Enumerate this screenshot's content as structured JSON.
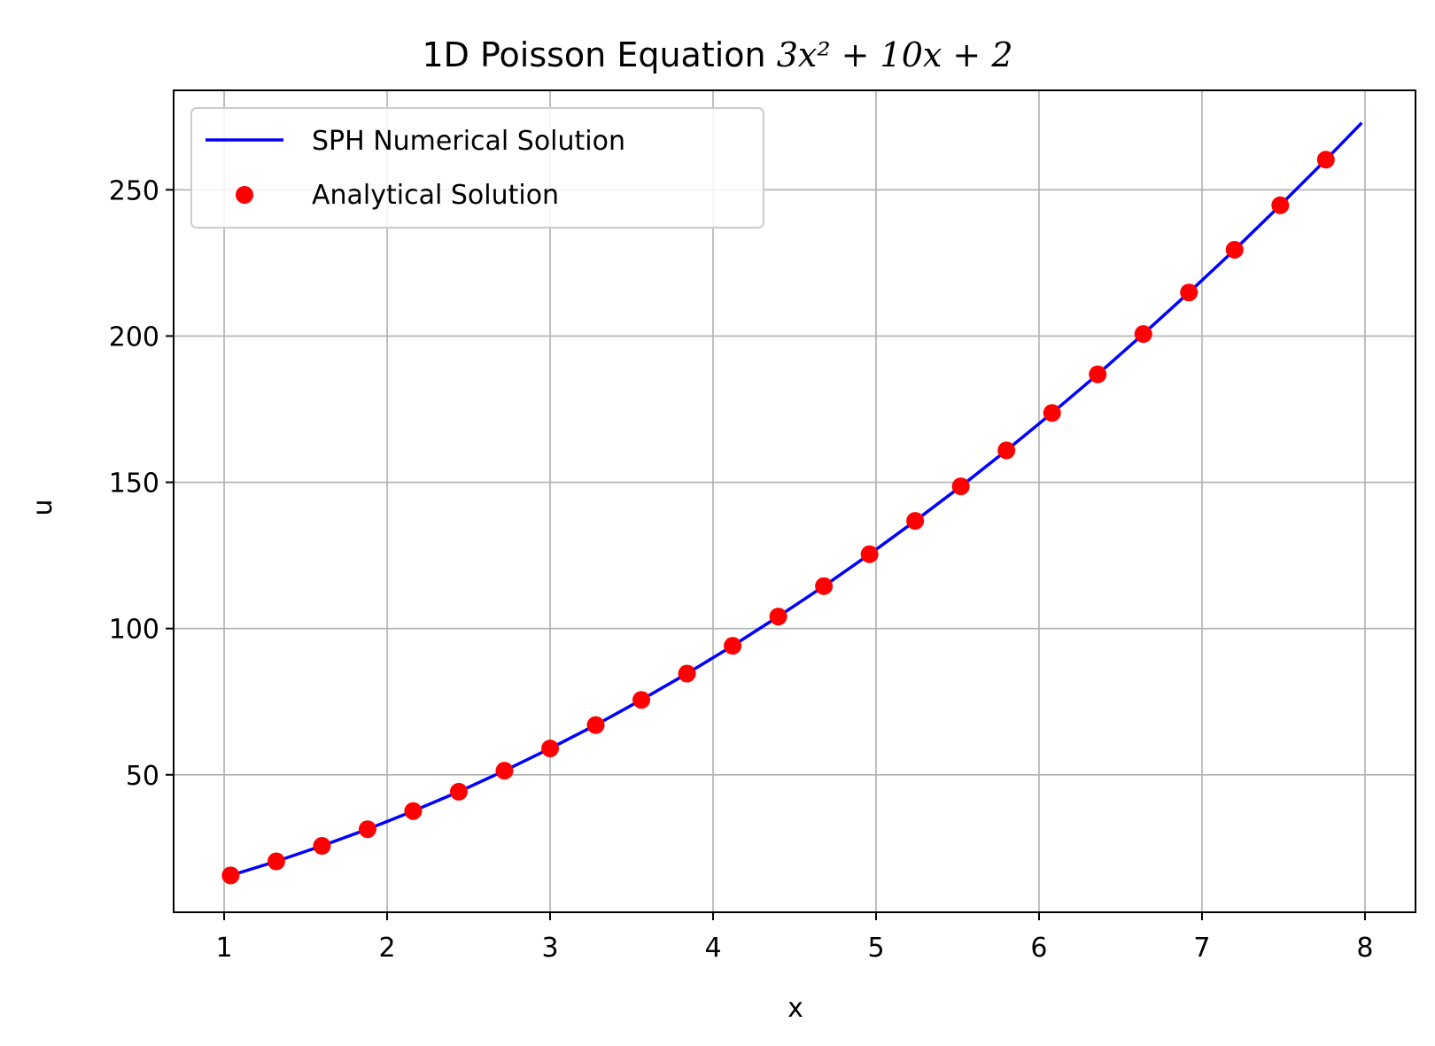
{
  "chart_data": {
    "type": "line",
    "title_prefix": "1D Poisson Equation ",
    "title_math": "3x² + 10x + 2",
    "xlabel": "x",
    "ylabel": "u",
    "xlim": [
      0.69,
      8.31
    ],
    "ylim": [
      3.0,
      284.0
    ],
    "xticks": [
      1,
      2,
      3,
      4,
      5,
      6,
      7,
      8
    ],
    "yticks": [
      50,
      100,
      150,
      200,
      250
    ],
    "grid": true,
    "legend_position": "top-left",
    "series": [
      {
        "name": "SPH Numerical Solution",
        "kind": "line",
        "color": "#0000ff",
        "x": [
          1.04,
          1.32,
          1.6,
          1.88,
          2.16,
          2.44,
          2.72,
          3.0,
          3.28,
          3.56,
          3.84,
          4.12,
          4.4,
          4.68,
          4.96,
          5.24,
          5.52,
          5.8,
          6.08,
          6.36,
          6.64,
          6.92,
          7.2,
          7.48,
          7.76,
          7.98
        ],
        "y": [
          15.6,
          20.4,
          25.7,
          31.4,
          37.6,
          44.2,
          51.4,
          59.0,
          67.0,
          75.6,
          84.6,
          94.1,
          104.1,
          114.5,
          125.4,
          136.8,
          148.6,
          160.9,
          173.7,
          186.9,
          200.7,
          214.9,
          229.5,
          244.7,
          260.3,
          272.9
        ]
      },
      {
        "name": "Analytical Solution",
        "kind": "scatter",
        "color": "#ff0000",
        "x": [
          1.04,
          1.32,
          1.6,
          1.88,
          2.16,
          2.44,
          2.72,
          3.0,
          3.28,
          3.56,
          3.84,
          4.12,
          4.4,
          4.68,
          4.96,
          5.24,
          5.52,
          5.8,
          6.08,
          6.36,
          6.64,
          6.92,
          7.2,
          7.48,
          7.76
        ],
        "y": [
          15.6,
          20.4,
          25.7,
          31.4,
          37.6,
          44.2,
          51.4,
          59.0,
          67.0,
          75.6,
          84.6,
          94.1,
          104.1,
          114.5,
          125.4,
          136.8,
          148.6,
          160.9,
          173.7,
          186.9,
          200.7,
          214.9,
          229.5,
          244.7,
          260.3
        ]
      }
    ]
  }
}
